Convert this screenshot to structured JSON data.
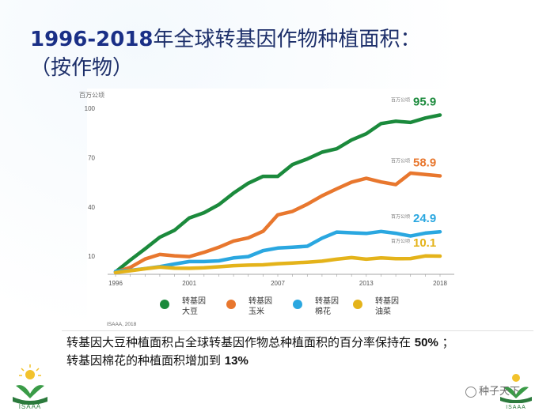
{
  "slide": {
    "title_year": "1996-2018",
    "title_text": "年全球转基因作物种植面积：",
    "title_line2": "（按作物）",
    "note_line1_pre": "转基因大豆种植面积占全球转基因作物总种植面积的百分率保持在",
    "note_line1_num": "50%",
    "note_line1_post": "；",
    "note_line2_pre": "转基因棉花的种植面积增加到",
    "note_line2_num": "13%",
    "logo_left_text": "ISAAA",
    "logo_right_text": "ISAAA",
    "watermark": "种子天下"
  },
  "chart_data": {
    "type": "line",
    "ylabel": "百万公顷",
    "source": "ISAAA, 2018",
    "x": [
      1996,
      1997,
      1998,
      1999,
      2000,
      2001,
      2002,
      2003,
      2004,
      2005,
      2006,
      2007,
      2008,
      2009,
      2010,
      2011,
      2012,
      2013,
      2014,
      2015,
      2016,
      2017,
      2018
    ],
    "x_ticks": [
      1996,
      2001,
      2007,
      2013,
      2018
    ],
    "y_ticks": [
      10,
      40,
      70,
      100
    ],
    "xlim": [
      1996,
      2018
    ],
    "ylim": [
      0,
      100
    ],
    "grid": false,
    "legend_position": "bottom",
    "series": [
      {
        "name": "转基因大豆",
        "color": "#1b8a3c",
        "values": [
          0.5,
          7.7,
          14.5,
          21.6,
          25.8,
          33.3,
          36.5,
          41.4,
          48.4,
          54.4,
          58.6,
          58.6,
          65.8,
          69.2,
          73.3,
          75.4,
          80.7,
          84.5,
          90.7,
          92.1,
          91.4,
          94.1,
          95.9
        ],
        "end_value": "95.9",
        "end_unit": "百万公顷"
      },
      {
        "name": "转基因玉米",
        "color": "#e8772e",
        "values": [
          0.3,
          3.2,
          8.3,
          11.1,
          10.3,
          9.8,
          12.4,
          15.5,
          19.3,
          21.2,
          25.2,
          35.2,
          37.3,
          41.7,
          46.8,
          51.0,
          55.1,
          57.4,
          55.2,
          53.6,
          60.6,
          59.7,
          58.9
        ],
        "end_value": "58.9",
        "end_unit": "百万公顷"
      },
      {
        "name": "转基因棉花",
        "color": "#2aa7e0",
        "values": [
          0.8,
          1.4,
          2.5,
          3.7,
          5.3,
          6.8,
          6.8,
          7.2,
          9.0,
          9.8,
          13.4,
          15.0,
          15.5,
          16.1,
          21.0,
          24.7,
          24.3,
          23.9,
          25.1,
          24.0,
          22.3,
          24.1,
          24.9
        ],
        "end_value": "24.9",
        "end_unit": "百万公顷"
      },
      {
        "name": "转基因油菜",
        "color": "#e4b31a",
        "values": [
          0.1,
          1.2,
          2.4,
          3.4,
          2.8,
          2.7,
          3.0,
          3.6,
          4.3,
          4.6,
          4.8,
          5.5,
          5.9,
          6.4,
          7.0,
          8.2,
          9.2,
          8.2,
          9.0,
          8.5,
          8.6,
          10.2,
          10.1
        ],
        "end_value": "10.1",
        "end_unit": "百万公顷"
      }
    ]
  }
}
